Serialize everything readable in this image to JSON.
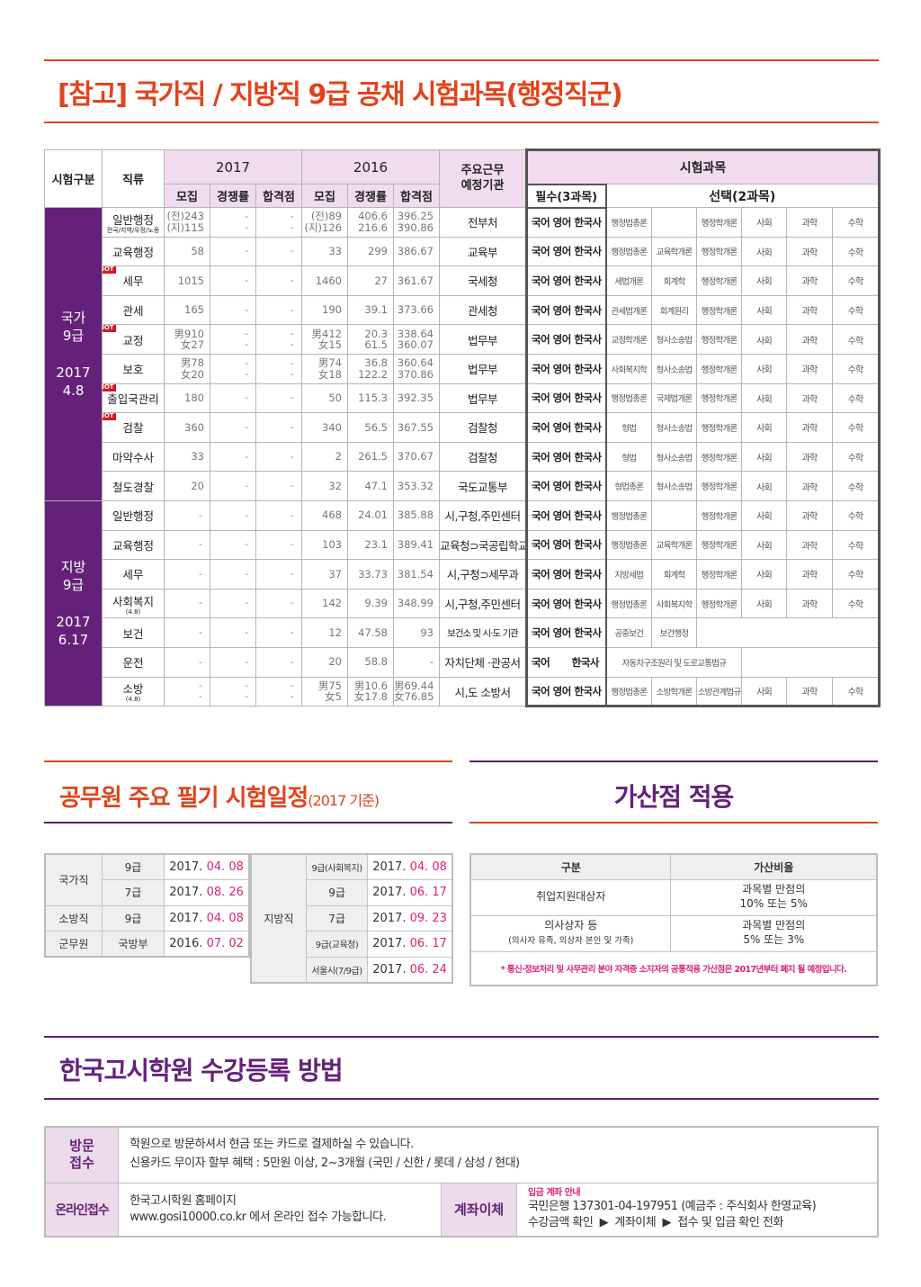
{
  "title": "[참고] 국가직 / 지방직 9급 공채 시험과목(행정직군)",
  "main_table": {
    "headers": {
      "exam_type": "시험구분",
      "job": "직류",
      "year2017": "2017",
      "year2016": "2016",
      "recruit": "모집",
      "competition": "경쟁률",
      "pass_score": "합격점",
      "agency": "주요근무 예정기관",
      "subjects": "시험과목",
      "required": "필수(3과목)",
      "elective": "선택(2과목)"
    },
    "groups": [
      {
        "name": "국가 9급",
        "date": "2017 4.8"
      },
      {
        "name": "지방 9급",
        "date": "2017 6.17"
      }
    ],
    "hot_label": "HOT",
    "rows": [
      {
        "job": "일반행정",
        "sub": "전국/지역/우정/노동",
        "hot": false,
        "r17": "(전)243 (지)115",
        "c17": "- -",
        "p17": "- -",
        "r16": "(전)89 (지)126",
        "c16": "406.6 216.6",
        "p16": "396.25 390.86",
        "agency": "전부처",
        "req": "국어 영어 한국사",
        "opt": [
          "행정법총론",
          "",
          "행정학개론",
          "사회",
          "과학",
          "수학"
        ]
      },
      {
        "job": "교육행정",
        "sub": "",
        "hot": false,
        "r17": "58",
        "c17": "-",
        "p17": "-",
        "r16": "33",
        "c16": "299",
        "p16": "386.67",
        "agency": "교육부",
        "req": "국어 영어 한국사",
        "opt": [
          "행정법총론",
          "교육학개론",
          "행정학개론",
          "사회",
          "과학",
          "수학"
        ]
      },
      {
        "job": "세무",
        "sub": "",
        "hot": true,
        "r17": "1015",
        "c17": "-",
        "p17": "-",
        "r16": "1460",
        "c16": "27",
        "p16": "361.67",
        "agency": "국세청",
        "req": "국어 영어 한국사",
        "opt": [
          "세법개론",
          "회계학",
          "행정학개론",
          "사회",
          "과학",
          "수학"
        ]
      },
      {
        "job": "관세",
        "sub": "",
        "hot": false,
        "r17": "165",
        "c17": "-",
        "p17": "-",
        "r16": "190",
        "c16": "39.1",
        "p16": "373.66",
        "agency": "관세청",
        "req": "국어 영어 한국사",
        "opt": [
          "관세법개론",
          "회계원리",
          "행정학개론",
          "사회",
          "과학",
          "수학"
        ]
      },
      {
        "job": "교정",
        "sub": "",
        "hot": true,
        "r17": "男910 女27",
        "c17": "- -",
        "p17": "- -",
        "r16": "男412 女15",
        "c16": "20.3 61.5",
        "p16": "338.64 360.07",
        "agency": "법무부",
        "req": "국어 영어 한국사",
        "opt": [
          "교정학개론",
          "형사소송법",
          "행정학개론",
          "사회",
          "과학",
          "수학"
        ]
      },
      {
        "job": "보호",
        "sub": "",
        "hot": false,
        "r17": "男78 女20",
        "c17": "- -",
        "p17": "- -",
        "r16": "男74 女18",
        "c16": "36.8 122.2",
        "p16": "360.64 370.86",
        "agency": "법무부",
        "req": "국어 영어 한국사",
        "opt": [
          "사회복지학",
          "형사소송법",
          "행정학개론",
          "사회",
          "과학",
          "수학"
        ]
      },
      {
        "job": "출입국관리",
        "sub": "",
        "hot": true,
        "r17": "180",
        "c17": "-",
        "p17": "-",
        "r16": "50",
        "c16": "115.3",
        "p16": "392.35",
        "agency": "법무부",
        "req": "국어 영어 한국사",
        "opt": [
          "행정법총론",
          "국제법개론",
          "행정학개론",
          "사회",
          "과학",
          "수학"
        ]
      },
      {
        "job": "검찰",
        "sub": "",
        "hot": true,
        "r17": "360",
        "c17": "-",
        "p17": "-",
        "r16": "340",
        "c16": "56.5",
        "p16": "367.55",
        "agency": "검찰청",
        "req": "국어 영어 한국사",
        "opt": [
          "형법",
          "형사소송법",
          "행정학개론",
          "사회",
          "과학",
          "수학"
        ]
      },
      {
        "job": "마약수사",
        "sub": "",
        "hot": false,
        "r17": "33",
        "c17": "-",
        "p17": "-",
        "r16": "2",
        "c16": "261.5",
        "p16": "370.67",
        "agency": "검찰청",
        "req": "국어 영어 한국사",
        "opt": [
          "형법",
          "형사소송법",
          "행정학개론",
          "사회",
          "과학",
          "수학"
        ]
      },
      {
        "job": "철도경찰",
        "sub": "",
        "hot": false,
        "r17": "20",
        "c17": "-",
        "p17": "-",
        "r16": "32",
        "c16": "47.1",
        "p16": "353.32",
        "agency": "국도교통부",
        "req": "국어 영어 한국사",
        "opt": [
          "형법총론",
          "형사소송법",
          "행정학개론",
          "사회",
          "과학",
          "수학"
        ]
      },
      {
        "job": "일반행정",
        "sub": "",
        "hot": false,
        "r17": "-",
        "c17": "-",
        "p17": "-",
        "r16": "468",
        "c16": "24.01",
        "p16": "385.88",
        "agency": "시,구청,주민센터",
        "req": "국어 영어 한국사",
        "opt": [
          "행정법총론",
          "",
          "행정학개론",
          "사회",
          "과학",
          "수학"
        ]
      },
      {
        "job": "교육행정",
        "sub": "",
        "hot": false,
        "r17": "-",
        "c17": "-",
        "p17": "-",
        "r16": "103",
        "c16": "23.1",
        "p16": "389.41",
        "agency": "교육청⊃국공립학교",
        "req": "국어 영어 한국사",
        "opt": [
          "행정법총론",
          "교육학개론",
          "행정학개론",
          "사회",
          "과학",
          "수학"
        ]
      },
      {
        "job": "세무",
        "sub": "",
        "hot": false,
        "r17": "-",
        "c17": "-",
        "p17": "-",
        "r16": "37",
        "c16": "33.73",
        "p16": "381.54",
        "agency": "시,구청⊃세무과",
        "req": "국어 영어 한국사",
        "opt": [
          "지방세법",
          "회계학",
          "행정학개론",
          "사회",
          "과학",
          "수학"
        ]
      },
      {
        "job": "사회복지",
        "sub": "(4.8)",
        "hot": false,
        "r17": "-",
        "c17": "-",
        "p17": "-",
        "r16": "142",
        "c16": "9.39",
        "p16": "348.99",
        "agency": "시,구청,주민센터",
        "req": "국어 영어 한국사",
        "opt": [
          "행정법총론",
          "사회복지학",
          "행정학개론",
          "사회",
          "과학",
          "수학"
        ]
      },
      {
        "job": "보건",
        "sub": "",
        "hot": false,
        "r17": "-",
        "c17": "-",
        "p17": "-",
        "r16": "12",
        "c16": "47.58",
        "p16": "93",
        "agency": "보건소 및 시·도 기관",
        "req": "국어 영어 한국사",
        "opt": [
          "공중보건",
          "보건행정"
        ]
      },
      {
        "job": "운전",
        "sub": "",
        "hot": false,
        "r17": "-",
        "c17": "-",
        "p17": "-",
        "r16": "20",
        "c16": "58.8",
        "p16": "-",
        "agency": "자치단체 ·관공서",
        "req": "국어       한국사",
        "opt": [
          "자동차구조원리 및 도로교통법규"
        ]
      },
      {
        "job": "소방",
        "sub": "(4.8)",
        "hot": false,
        "r17": "- -",
        "c17": "- -",
        "p17": "- -",
        "r16": "男75 女5",
        "c16": "男10.6 女17.8",
        "p16": "男69.44 女76.85",
        "agency": "시,도 소방서",
        "req": "국어 영어 한국사",
        "opt": [
          "행정법총론",
          "소방학개론",
          "소방관계법규",
          "사회",
          "과학",
          "수학"
        ]
      }
    ]
  },
  "schedule": {
    "title": "공무원 주요 필기 시험일정",
    "title_suffix": "(2017 기준)",
    "left": [
      {
        "cat": "국가직",
        "grade": "9급",
        "year": "2017.",
        "md": "04. 08"
      },
      {
        "cat": "",
        "grade": "7급",
        "year": "2017.",
        "md": "08. 26"
      },
      {
        "cat": "소방직",
        "grade": "9급",
        "year": "2017.",
        "md": "04. 08"
      },
      {
        "cat": "군무원",
        "grade": "국방부",
        "year": "2016.",
        "md": "07. 02"
      }
    ],
    "right_cat": "지방직",
    "right": [
      {
        "grade": "9급(사회복지)",
        "year": "2017.",
        "md": "04. 08"
      },
      {
        "grade": "9급",
        "year": "2017.",
        "md": "06. 17"
      },
      {
        "grade": "7급",
        "year": "2017.",
        "md": "09. 23"
      },
      {
        "grade": "9급(교육청)",
        "year": "2017.",
        "md": "06. 17"
      },
      {
        "grade": "서울시(7/9급)",
        "year": "2017.",
        "md": "06. 24"
      }
    ]
  },
  "bonus": {
    "title": "가산점 적용",
    "col1": "구분",
    "col2": "가산비율",
    "rows": [
      {
        "target": "취업지원대상자",
        "target_sub": "",
        "rate1": "과목별 만점의",
        "rate2": "10% 또는 5%"
      },
      {
        "target": "의사상자 등",
        "target_sub": "(의사자 유족, 의상자 본인 및 가족)",
        "rate1": "과목별 만점의",
        "rate2": "5% 또는 3%"
      }
    ],
    "note": "* 통신·정보처리 및 사무관리 분야 자격증 소지자의 공통적용 가산점은 2017년부터 폐지 될 예정입니다."
  },
  "registration": {
    "title": "한국고시학원 수강등록 방법",
    "visit_label_1": "방문",
    "visit_label_2": "접수",
    "visit_line1": "학원으로 방문하셔서 현금 또는 카드로 결제하실 수 있습니다.",
    "visit_line2": "신용카드 무이자 할부 혜택 : 5만원 이상, 2~3개월 (국민 / 신한 / 롯데 / 삼성 / 현대)",
    "online_label": "온라인접수",
    "online_line1": "한국고시학원 홈페이지",
    "online_line2": "www.gosi10000.co.kr 에서 온라인 접수 가능합니다.",
    "transfer_label": "계좌이체",
    "transfer_note": "입금 계좌 안내",
    "transfer_line1": "국민은행 137301-04-197951 (예금주 : 주식회사 한영교육)",
    "transfer_line2": "수강금액 확인  ▶  계좌이체  ▶  접수 및 입금 확인 전화"
  },
  "colors": {
    "orange": "#e0441c",
    "purple": "#65217a",
    "pink_header": "#f0dcee",
    "date_accent": "#d9237b",
    "hot_badge": "#d8161f"
  }
}
